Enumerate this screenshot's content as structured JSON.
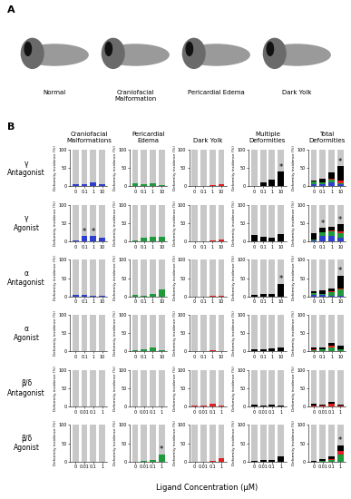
{
  "figure": {
    "panel_labels": [
      "A",
      "B"
    ],
    "images": [
      "Normal",
      "Craniofacial\nMalformation",
      "Pericardial Edema",
      "Dark Yolk"
    ],
    "columns": [
      "Craniofacial\nMalformations",
      "Pericardial\nEdema",
      "Dark Yolk",
      "Multiple\nDeformities",
      "Total\nDeformities"
    ],
    "rows": [
      "γ\nAntagonist",
      "γ\nAgonist",
      "α\nAntagonist",
      "α\nAgonist",
      "β/δ\nAntagonist",
      "β/δ\nAgonist"
    ],
    "xlabel": "Ligand Concentration (μM)",
    "ylabel": "Deformity incidence (%)",
    "background_color": "#c8c8c8"
  },
  "chart_data": [
    {
      "type": "bar",
      "categories": [
        "0",
        "0.1",
        "1",
        "10"
      ],
      "values": [
        5,
        5,
        10,
        5
      ],
      "color": "#2e3fcf",
      "ylim": [
        0,
        100
      ],
      "yticks": [
        0,
        50,
        100
      ],
      "annotations": []
    },
    {
      "type": "bar",
      "categories": [
        "0",
        "0.1",
        "1",
        "10"
      ],
      "values": [
        8,
        5,
        8,
        3
      ],
      "color": "#1e9a3a",
      "ylim": [
        0,
        100
      ],
      "yticks": [
        0,
        50,
        100
      ],
      "annotations": []
    },
    {
      "type": "bar",
      "categories": [
        "0",
        "0.1",
        "1",
        "10"
      ],
      "values": [
        0,
        0,
        3,
        7
      ],
      "color": "#e02020",
      "ylim": [
        0,
        100
      ],
      "yticks": [
        0,
        50,
        100
      ],
      "annotations": []
    },
    {
      "type": "bar",
      "categories": [
        "0",
        "0.1",
        "1",
        "10"
      ],
      "values": [
        2,
        12,
        18,
        40
      ],
      "color": "#000000",
      "ylim": [
        0,
        100
      ],
      "yticks": [
        0,
        50,
        100
      ],
      "annotations": [
        {
          "text": "*",
          "category": "10"
        }
      ]
    },
    {
      "type": "bar",
      "stacked": true,
      "categories": [
        "0",
        "0.1",
        "1",
        "10"
      ],
      "series": [
        {
          "color": "#2e3fcf",
          "values": [
            5,
            5,
            10,
            5
          ]
        },
        {
          "color": "#1e9a3a",
          "values": [
            8,
            5,
            8,
            3
          ]
        },
        {
          "color": "#e02020",
          "values": [
            0,
            0,
            3,
            7
          ]
        },
        {
          "color": "#000000",
          "values": [
            2,
            12,
            18,
            40
          ]
        }
      ],
      "ylim": [
        0,
        100
      ],
      "yticks": [
        0,
        50,
        100
      ],
      "annotations": [
        {
          "text": "*",
          "category": "10"
        }
      ]
    },
    {
      "type": "bar",
      "categories": [
        "0",
        "0.1",
        "1",
        "10"
      ],
      "values": [
        2,
        15,
        15,
        10
      ],
      "color": "#2e3fcf",
      "ylim": [
        0,
        100
      ],
      "yticks": [
        0,
        50,
        100
      ],
      "annotations": [
        {
          "text": "*",
          "category": "0.1"
        },
        {
          "text": "*",
          "category": "1"
        }
      ]
    },
    {
      "type": "bar",
      "categories": [
        "0",
        "0.1",
        "1",
        "10"
      ],
      "values": [
        3,
        10,
        12,
        12
      ],
      "color": "#1e9a3a",
      "ylim": [
        0,
        100
      ],
      "yticks": [
        0,
        50,
        100
      ],
      "annotations": []
    },
    {
      "type": "bar",
      "categories": [
        "0",
        "0.1",
        "1",
        "10"
      ],
      "values": [
        0,
        0,
        3,
        5
      ],
      "color": "#e02020",
      "ylim": [
        0,
        100
      ],
      "yticks": [
        0,
        50,
        100
      ],
      "annotations": []
    },
    {
      "type": "bar",
      "categories": [
        "0",
        "0.1",
        "1",
        "10"
      ],
      "values": [
        18,
        12,
        10,
        20
      ],
      "color": "#000000",
      "ylim": [
        0,
        100
      ],
      "yticks": [
        0,
        50,
        100
      ],
      "annotations": []
    },
    {
      "type": "bar",
      "stacked": true,
      "categories": [
        "0",
        "0.1",
        "1",
        "10"
      ],
      "series": [
        {
          "color": "#2e3fcf",
          "values": [
            2,
            15,
            15,
            10
          ]
        },
        {
          "color": "#1e9a3a",
          "values": [
            3,
            10,
            12,
            12
          ]
        },
        {
          "color": "#e02020",
          "values": [
            0,
            0,
            3,
            5
          ]
        },
        {
          "color": "#000000",
          "values": [
            18,
            12,
            10,
            20
          ]
        }
      ],
      "ylim": [
        0,
        100
      ],
      "yticks": [
        0,
        50,
        100
      ],
      "annotations": [
        {
          "text": "*",
          "category": "0.1"
        },
        {
          "text": "*",
          "category": "10"
        }
      ]
    },
    {
      "type": "bar",
      "categories": [
        "0",
        "0.1",
        "1",
        "10"
      ],
      "values": [
        5,
        5,
        3,
        2
      ],
      "color": "#2e3fcf",
      "ylim": [
        0,
        100
      ],
      "yticks": [
        0,
        50,
        100
      ],
      "annotations": []
    },
    {
      "type": "bar",
      "categories": [
        "0",
        "0.1",
        "1",
        "10"
      ],
      "values": [
        5,
        3,
        8,
        18
      ],
      "color": "#1e9a3a",
      "ylim": [
        0,
        100
      ],
      "yticks": [
        0,
        50,
        100
      ],
      "annotations": []
    },
    {
      "type": "bar",
      "categories": [
        "0",
        "0.1",
        "1",
        "10"
      ],
      "values": [
        0,
        0,
        3,
        2
      ],
      "color": "#e02020",
      "ylim": [
        0,
        100
      ],
      "yticks": [
        0,
        50,
        100
      ],
      "annotations": []
    },
    {
      "type": "bar",
      "categories": [
        "0",
        "0.1",
        "1",
        "10"
      ],
      "values": [
        5,
        8,
        8,
        35
      ],
      "color": "#000000",
      "ylim": [
        0,
        100
      ],
      "yticks": [
        0,
        50,
        100
      ],
      "annotations": [
        {
          "text": "*",
          "category": "10"
        }
      ]
    },
    {
      "type": "bar",
      "stacked": true,
      "categories": [
        "0",
        "0.1",
        "1",
        "10"
      ],
      "series": [
        {
          "color": "#2e3fcf",
          "values": [
            5,
            5,
            3,
            2
          ]
        },
        {
          "color": "#1e9a3a",
          "values": [
            5,
            3,
            8,
            18
          ]
        },
        {
          "color": "#e02020",
          "values": [
            0,
            0,
            3,
            2
          ]
        },
        {
          "color": "#000000",
          "values": [
            5,
            8,
            8,
            35
          ]
        }
      ],
      "ylim": [
        0,
        100
      ],
      "yticks": [
        0,
        50,
        100
      ],
      "annotations": [
        {
          "text": "*",
          "category": "10"
        }
      ]
    },
    {
      "type": "bar",
      "categories": [
        "0",
        "0.1",
        "1",
        "10"
      ],
      "values": [
        0,
        0,
        0,
        2
      ],
      "color": "#2e3fcf",
      "ylim": [
        0,
        100
      ],
      "yticks": [
        0,
        50,
        100
      ],
      "annotations": []
    },
    {
      "type": "bar",
      "categories": [
        "0",
        "0.1",
        "1",
        "10"
      ],
      "values": [
        3,
        5,
        12,
        3
      ],
      "color": "#1e9a3a",
      "ylim": [
        0,
        100
      ],
      "yticks": [
        0,
        50,
        100
      ],
      "annotations": []
    },
    {
      "type": "bar",
      "categories": [
        "0",
        "0.1",
        "1",
        "10"
      ],
      "values": [
        2,
        0,
        3,
        2
      ],
      "color": "#e02020",
      "ylim": [
        0,
        100
      ],
      "yticks": [
        0,
        50,
        100
      ],
      "annotations": []
    },
    {
      "type": "bar",
      "categories": [
        "0",
        "0.1",
        "1",
        "10"
      ],
      "values": [
        5,
        5,
        8,
        10
      ],
      "color": "#000000",
      "ylim": [
        0,
        100
      ],
      "yticks": [
        0,
        50,
        100
      ],
      "annotations": []
    },
    {
      "type": "bar",
      "stacked": true,
      "categories": [
        "0",
        "0.1",
        "1",
        "10"
      ],
      "series": [
        {
          "color": "#2e3fcf",
          "values": [
            0,
            0,
            0,
            2
          ]
        },
        {
          "color": "#1e9a3a",
          "values": [
            3,
            5,
            12,
            3
          ]
        },
        {
          "color": "#e02020",
          "values": [
            2,
            0,
            3,
            2
          ]
        },
        {
          "color": "#000000",
          "values": [
            5,
            5,
            8,
            10
          ]
        }
      ],
      "ylim": [
        0,
        100
      ],
      "yticks": [
        0,
        50,
        100
      ],
      "annotations": []
    },
    {
      "type": "bar",
      "categories": [
        "0",
        "0.01",
        "0.1",
        "1"
      ],
      "values": [
        0,
        0,
        0,
        0
      ],
      "color": "#2e3fcf",
      "ylim": [
        0,
        100
      ],
      "yticks": [
        0,
        50,
        100
      ],
      "annotations": []
    },
    {
      "type": "bar",
      "categories": [
        "0",
        "0.01",
        "0.1",
        "1"
      ],
      "values": [
        0,
        0,
        0,
        0
      ],
      "color": "#1e9a3a",
      "ylim": [
        0,
        100
      ],
      "yticks": [
        0,
        50,
        100
      ],
      "annotations": []
    },
    {
      "type": "bar",
      "categories": [
        "0",
        "0.01",
        "0.1",
        "1"
      ],
      "values": [
        3,
        3,
        8,
        3
      ],
      "color": "#e02020",
      "ylim": [
        0,
        100
      ],
      "yticks": [
        0,
        50,
        100
      ],
      "annotations": []
    },
    {
      "type": "bar",
      "categories": [
        "0",
        "0.01",
        "0.1",
        "1"
      ],
      "values": [
        5,
        3,
        5,
        2
      ],
      "color": "#000000",
      "ylim": [
        0,
        100
      ],
      "yticks": [
        0,
        50,
        100
      ],
      "annotations": []
    },
    {
      "type": "bar",
      "stacked": true,
      "categories": [
        "0",
        "0.01",
        "0.1",
        "1"
      ],
      "series": [
        {
          "color": "#2e3fcf",
          "values": [
            0,
            0,
            0,
            0
          ]
        },
        {
          "color": "#1e9a3a",
          "values": [
            0,
            0,
            0,
            0
          ]
        },
        {
          "color": "#e02020",
          "values": [
            3,
            3,
            8,
            3
          ]
        },
        {
          "color": "#000000",
          "values": [
            5,
            3,
            5,
            2
          ]
        }
      ],
      "ylim": [
        0,
        100
      ],
      "yticks": [
        0,
        50,
        100
      ],
      "annotations": []
    },
    {
      "type": "bar",
      "categories": [
        "0",
        "0.01",
        "0.1",
        "1"
      ],
      "values": [
        0,
        0,
        0,
        0
      ],
      "color": "#2e3fcf",
      "ylim": [
        0,
        100
      ],
      "yticks": [
        0,
        50,
        100
      ],
      "annotations": []
    },
    {
      "type": "bar",
      "categories": [
        "0",
        "0.01",
        "0.1",
        "1"
      ],
      "values": [
        0,
        3,
        5,
        20
      ],
      "color": "#1e9a3a",
      "ylim": [
        0,
        100
      ],
      "yticks": [
        0,
        50,
        100
      ],
      "annotations": [
        {
          "text": "*",
          "category": "1"
        }
      ]
    },
    {
      "type": "bar",
      "categories": [
        "0",
        "0.01",
        "0.1",
        "1"
      ],
      "values": [
        0,
        0,
        3,
        10
      ],
      "color": "#e02020",
      "ylim": [
        0,
        100
      ],
      "yticks": [
        0,
        50,
        100
      ],
      "annotations": []
    },
    {
      "type": "bar",
      "categories": [
        "0",
        "0.01",
        "0.1",
        "1"
      ],
      "values": [
        3,
        5,
        5,
        15
      ],
      "color": "#000000",
      "ylim": [
        0,
        100
      ],
      "yticks": [
        0,
        50,
        100
      ],
      "annotations": []
    },
    {
      "type": "bar",
      "stacked": true,
      "categories": [
        "0",
        "0.01",
        "0.1",
        "1"
      ],
      "series": [
        {
          "color": "#2e3fcf",
          "values": [
            0,
            0,
            0,
            0
          ]
        },
        {
          "color": "#1e9a3a",
          "values": [
            0,
            3,
            5,
            20
          ]
        },
        {
          "color": "#e02020",
          "values": [
            0,
            0,
            3,
            10
          ]
        },
        {
          "color": "#000000",
          "values": [
            3,
            5,
            5,
            15
          ]
        }
      ],
      "ylim": [
        0,
        100
      ],
      "yticks": [
        0,
        50,
        100
      ],
      "annotations": [
        {
          "text": "*",
          "category": "1"
        }
      ]
    }
  ]
}
